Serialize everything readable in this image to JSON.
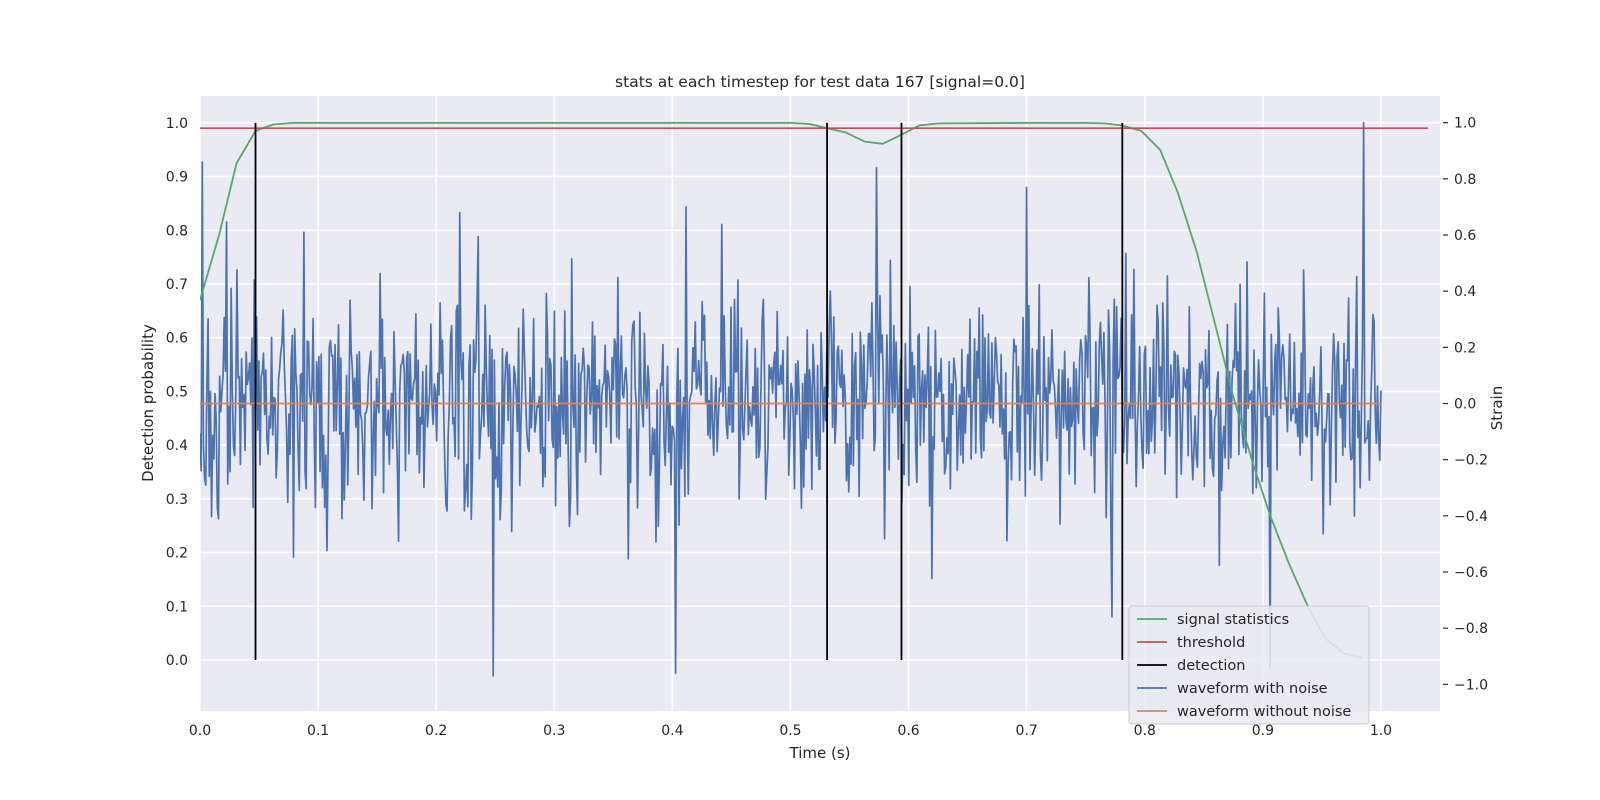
{
  "chart_data": {
    "type": "line",
    "title": "stats at each timestep for test data 167 [signal=0.0]",
    "xlabel": "Time (s)",
    "ylabel_left": "Detection probability",
    "ylabel_right": "Strain",
    "xlim": [
      0.0,
      1.05
    ],
    "ylim_left": [
      -0.095,
      1.05
    ],
    "ylim_right": [
      -1.095,
      1.095
    ],
    "x_ticks": [
      "0.0",
      "0.1",
      "0.2",
      "0.3",
      "0.4",
      "0.5",
      "0.6",
      "0.7",
      "0.8",
      "0.9",
      "1.0"
    ],
    "y_left_ticks": [
      "0.0",
      "0.1",
      "0.2",
      "0.3",
      "0.4",
      "0.5",
      "0.6",
      "0.7",
      "0.8",
      "0.9",
      "1.0"
    ],
    "y_right_ticks": [
      "−1.0",
      "−0.8",
      "−0.6",
      "−0.4",
      "−0.2",
      "0.0",
      "0.2",
      "0.4",
      "0.6",
      "0.8",
      "1.0"
    ],
    "grid": true,
    "legend_position": "lower-right",
    "legend": [
      {
        "label": "signal statistics",
        "color": "#55a868"
      },
      {
        "label": "threshold",
        "color": "#c44e52"
      },
      {
        "label": "detection",
        "color": "#000000"
      },
      {
        "label": "waveform with noise",
        "color": "#4c72b0"
      },
      {
        "label": "waveform without noise",
        "color": "#dd8452"
      }
    ],
    "series": [
      {
        "name": "signal statistics",
        "axis": "left",
        "color": "#55a868",
        "x": [
          0.0,
          0.016,
          0.031,
          0.047,
          0.062,
          0.078,
          0.1,
          0.2,
          0.3,
          0.4,
          0.5,
          0.516,
          0.531,
          0.547,
          0.563,
          0.578,
          0.594,
          0.609,
          0.625,
          0.7,
          0.75,
          0.766,
          0.781,
          0.797,
          0.813,
          0.828,
          0.844,
          0.859,
          0.875,
          0.891,
          0.906,
          0.922,
          0.938,
          0.953,
          0.969,
          0.984
        ],
        "y": [
          0.67,
          0.79,
          0.925,
          0.985,
          0.997,
          1.0,
          1.0,
          1.0,
          1.0,
          1.0,
          1.0,
          0.998,
          0.99,
          0.982,
          0.965,
          0.961,
          0.978,
          0.995,
          0.999,
          1.0,
          1.0,
          0.999,
          0.995,
          0.985,
          0.95,
          0.87,
          0.76,
          0.63,
          0.49,
          0.37,
          0.27,
          0.18,
          0.1,
          0.04,
          0.012,
          0.004
        ]
      },
      {
        "name": "threshold",
        "axis": "left",
        "color": "#c44e52",
        "x": [
          0.0,
          1.04
        ],
        "y": [
          0.99,
          0.99
        ]
      },
      {
        "name": "waveform with noise",
        "axis": "right",
        "color": "#4c72b0",
        "n_points": 1024,
        "x_range": [
          0.0,
          1.0
        ],
        "y_std": 0.2,
        "y_range": [
          -0.98,
          1.0
        ],
        "peaks": [
          {
            "x": 0.002,
            "y": 0.86
          },
          {
            "x": 0.088,
            "y": 0.61
          },
          {
            "x": 0.22,
            "y": 0.68
          },
          {
            "x": 0.248,
            "y": -0.97
          },
          {
            "x": 0.403,
            "y": -0.96
          },
          {
            "x": 0.412,
            "y": 0.7
          },
          {
            "x": 0.573,
            "y": 0.84
          },
          {
            "x": 0.7,
            "y": 0.77
          },
          {
            "x": 0.772,
            "y": -0.76
          },
          {
            "x": 0.906,
            "y": -0.94
          },
          {
            "x": 0.985,
            "y": 1.0
          }
        ]
      },
      {
        "name": "waveform without noise",
        "axis": "right",
        "color": "#dd8452",
        "x": [
          0.0,
          1.0
        ],
        "y": [
          0.0,
          0.0
        ]
      }
    ],
    "detections": {
      "color": "#000000",
      "x": [
        0.047,
        0.531,
        0.594,
        0.781
      ],
      "y_range": [
        0.0,
        1.0
      ]
    }
  }
}
